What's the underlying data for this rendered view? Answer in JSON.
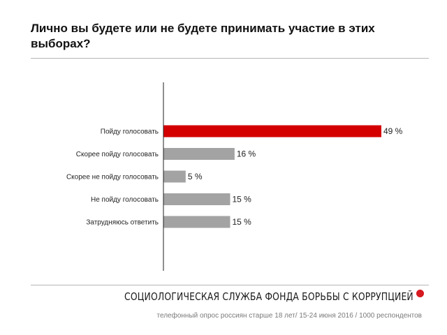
{
  "chart_data": {
    "type": "bar",
    "orientation": "horizontal",
    "title": "Лично вы будете или не будете принимать участие в этих выборах?",
    "categories": [
      "Пойду голосовать",
      "Скорее пойду голосовать",
      "Скорее не пойду голосовать",
      "Не пойду голосовать",
      "Затрудняюсь ответить"
    ],
    "values": [
      49,
      16,
      5,
      15,
      15
    ],
    "value_labels": [
      "49 %",
      "16 %",
      "5 %",
      "15 %",
      "15 %"
    ],
    "unit": "%",
    "highlight_index": 0,
    "colors": {
      "highlight": "#d40000",
      "default": "#a3a3a3",
      "axis": "#222222"
    },
    "xlim": [
      0,
      49
    ],
    "grid": false,
    "legend": "none"
  },
  "footer": {
    "organization": "СОЦИОЛОГИЧЕСКАЯ СЛУЖБА ФОНДА БОРЬБЫ С КОРРУПЦИЕЙ",
    "note": "телефонный опрос россиян старше 18 лет/ 15-24 июня 2016 / 1000 респондентов",
    "accent_color": "#d71920"
  }
}
